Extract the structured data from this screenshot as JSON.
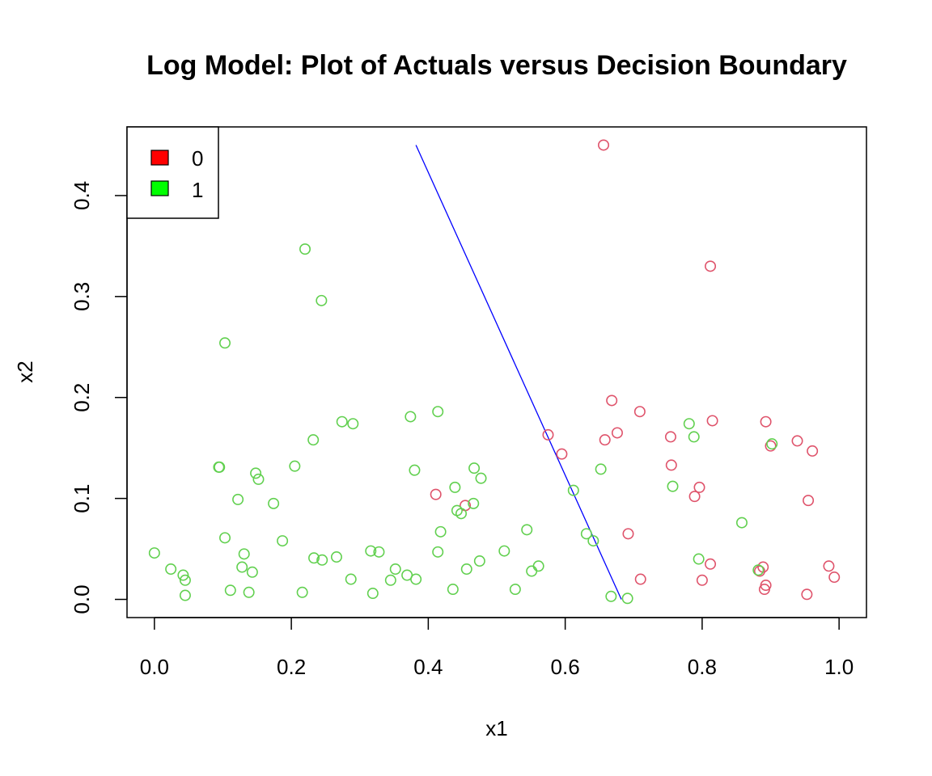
{
  "chart_data": {
    "type": "scatter",
    "title": "Log Model: Plot of Actuals versus Decision Boundary",
    "xlabel": "x1",
    "ylabel": "x2",
    "xlim": [
      -0.04,
      1.04
    ],
    "ylim": [
      -0.018,
      0.468
    ],
    "x_ticks": [
      0.0,
      0.2,
      0.4,
      0.6,
      0.8,
      1.0
    ],
    "x_tick_labels": [
      "0.0",
      "0.2",
      "0.4",
      "0.6",
      "0.8",
      "1.0"
    ],
    "y_ticks": [
      0.0,
      0.1,
      0.2,
      0.3,
      0.4
    ],
    "y_tick_labels": [
      "0.0",
      "0.1",
      "0.2",
      "0.3",
      "0.4"
    ],
    "legend": {
      "position": "top-left",
      "entries": [
        {
          "label": "0",
          "color": "#ff0000"
        },
        {
          "label": "1",
          "color": "#00ff00"
        }
      ]
    },
    "colors": {
      "class0": "#DF536B",
      "class1": "#61D04F",
      "boundary": "#0000ff"
    },
    "boundary": {
      "x": [
        0.382,
        0.682
      ],
      "y": [
        0.45,
        0.0
      ]
    },
    "series": [
      {
        "name": "0",
        "points": [
          [
            0.656,
            0.45
          ],
          [
            0.812,
            0.33
          ],
          [
            0.668,
            0.197
          ],
          [
            0.709,
            0.186
          ],
          [
            0.676,
            0.165
          ],
          [
            0.658,
            0.158
          ],
          [
            0.575,
            0.163
          ],
          [
            0.595,
            0.144
          ],
          [
            0.815,
            0.177
          ],
          [
            0.893,
            0.176
          ],
          [
            0.754,
            0.161
          ],
          [
            0.9,
            0.152
          ],
          [
            0.939,
            0.157
          ],
          [
            0.961,
            0.147
          ],
          [
            0.755,
            0.133
          ],
          [
            0.796,
            0.111
          ],
          [
            0.789,
            0.102
          ],
          [
            0.955,
            0.098
          ],
          [
            0.411,
            0.104
          ],
          [
            0.454,
            0.093
          ],
          [
            0.692,
            0.065
          ],
          [
            0.812,
            0.035
          ],
          [
            0.889,
            0.032
          ],
          [
            0.884,
            0.028
          ],
          [
            0.985,
            0.033
          ],
          [
            0.71,
            0.02
          ],
          [
            0.8,
            0.019
          ],
          [
            0.893,
            0.014
          ],
          [
            0.891,
            0.01
          ],
          [
            0.993,
            0.022
          ],
          [
            0.953,
            0.005
          ]
        ]
      },
      {
        "name": "1",
        "points": [
          [
            0.22,
            0.347
          ],
          [
            0.244,
            0.296
          ],
          [
            0.103,
            0.254
          ],
          [
            0.414,
            0.186
          ],
          [
            0.374,
            0.181
          ],
          [
            0.274,
            0.176
          ],
          [
            0.29,
            0.174
          ],
          [
            0.232,
            0.158
          ],
          [
            0.781,
            0.174
          ],
          [
            0.788,
            0.161
          ],
          [
            0.902,
            0.154
          ],
          [
            0.094,
            0.131
          ],
          [
            0.095,
            0.131
          ],
          [
            0.205,
            0.132
          ],
          [
            0.148,
            0.125
          ],
          [
            0.152,
            0.119
          ],
          [
            0.38,
            0.128
          ],
          [
            0.467,
            0.13
          ],
          [
            0.477,
            0.12
          ],
          [
            0.439,
            0.111
          ],
          [
            0.652,
            0.129
          ],
          [
            0.757,
            0.112
          ],
          [
            0.612,
            0.108
          ],
          [
            0.122,
            0.099
          ],
          [
            0.174,
            0.095
          ],
          [
            0.466,
            0.095
          ],
          [
            0.442,
            0.088
          ],
          [
            0.448,
            0.085
          ],
          [
            0.418,
            0.067
          ],
          [
            0.544,
            0.069
          ],
          [
            0.631,
            0.065
          ],
          [
            0.641,
            0.058
          ],
          [
            0.858,
            0.076
          ],
          [
            0.103,
            0.061
          ],
          [
            0.187,
            0.058
          ],
          [
            0.0,
            0.046
          ],
          [
            0.131,
            0.045
          ],
          [
            0.316,
            0.048
          ],
          [
            0.328,
            0.047
          ],
          [
            0.414,
            0.047
          ],
          [
            0.511,
            0.048
          ],
          [
            0.233,
            0.041
          ],
          [
            0.245,
            0.039
          ],
          [
            0.266,
            0.042
          ],
          [
            0.475,
            0.038
          ],
          [
            0.795,
            0.04
          ],
          [
            0.024,
            0.03
          ],
          [
            0.128,
            0.032
          ],
          [
            0.143,
            0.027
          ],
          [
            0.352,
            0.03
          ],
          [
            0.369,
            0.024
          ],
          [
            0.382,
            0.02
          ],
          [
            0.456,
            0.03
          ],
          [
            0.551,
            0.028
          ],
          [
            0.561,
            0.033
          ],
          [
            0.042,
            0.024
          ],
          [
            0.045,
            0.019
          ],
          [
            0.287,
            0.02
          ],
          [
            0.345,
            0.019
          ],
          [
            0.111,
            0.009
          ],
          [
            0.138,
            0.007
          ],
          [
            0.216,
            0.007
          ],
          [
            0.319,
            0.006
          ],
          [
            0.436,
            0.01
          ],
          [
            0.527,
            0.01
          ],
          [
            0.045,
            0.004
          ],
          [
            0.667,
            0.003
          ],
          [
            0.691,
            0.001
          ],
          [
            0.882,
            0.029
          ]
        ]
      }
    ]
  }
}
